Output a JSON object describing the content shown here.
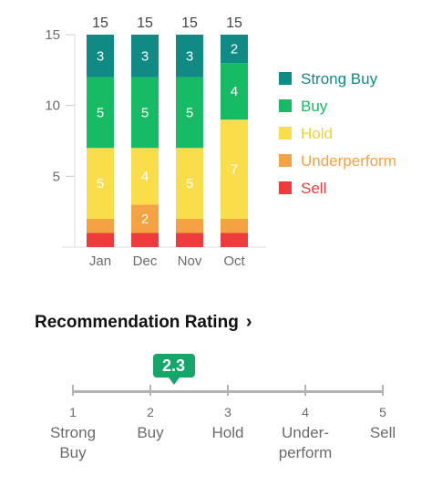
{
  "chart_data": {
    "type": "bar",
    "stacked": true,
    "categories": [
      "Jan",
      "Dec",
      "Nov",
      "Oct"
    ],
    "totals": [
      "15",
      "15",
      "15",
      "15"
    ],
    "ylim": [
      0,
      15
    ],
    "yticks": [
      "5",
      "10",
      "15"
    ],
    "series": [
      {
        "name": "Sell",
        "values": [
          1,
          1,
          1,
          1
        ],
        "color": "#ef3b3b",
        "text_color": "#ef3b3b"
      },
      {
        "name": "Underperform",
        "values": [
          1,
          2,
          1,
          1
        ],
        "color": "#f5a243",
        "text_color": "#f5a243"
      },
      {
        "name": "Hold",
        "values": [
          5,
          4,
          5,
          7
        ],
        "color": "#fadd4a",
        "text_color": "#f2d033"
      },
      {
        "name": "Buy",
        "values": [
          5,
          5,
          5,
          4
        ],
        "color": "#18bb65",
        "text_color": "#18bb65"
      },
      {
        "name": "Strong Buy",
        "values": [
          3,
          3,
          3,
          2
        ],
        "color": "#0f8a84",
        "text_color": "#0f8a84"
      }
    ],
    "legend_order": [
      "Strong Buy",
      "Buy",
      "Hold",
      "Underperform",
      "Sell"
    ],
    "grid": false,
    "legend_position": "right"
  },
  "rating": {
    "title": "Recommendation Rating",
    "chevron": "›",
    "value": "2.3",
    "value_numeric": 2.3,
    "scale_min": 1,
    "scale_max": 5,
    "marker_color": "#16a568",
    "scale": [
      {
        "num": "1",
        "label": "Strong\nBuy"
      },
      {
        "num": "2",
        "label": "Buy"
      },
      {
        "num": "3",
        "label": "Hold"
      },
      {
        "num": "4",
        "label": "Under-\nperform"
      },
      {
        "num": "5",
        "label": "Sell"
      }
    ]
  }
}
